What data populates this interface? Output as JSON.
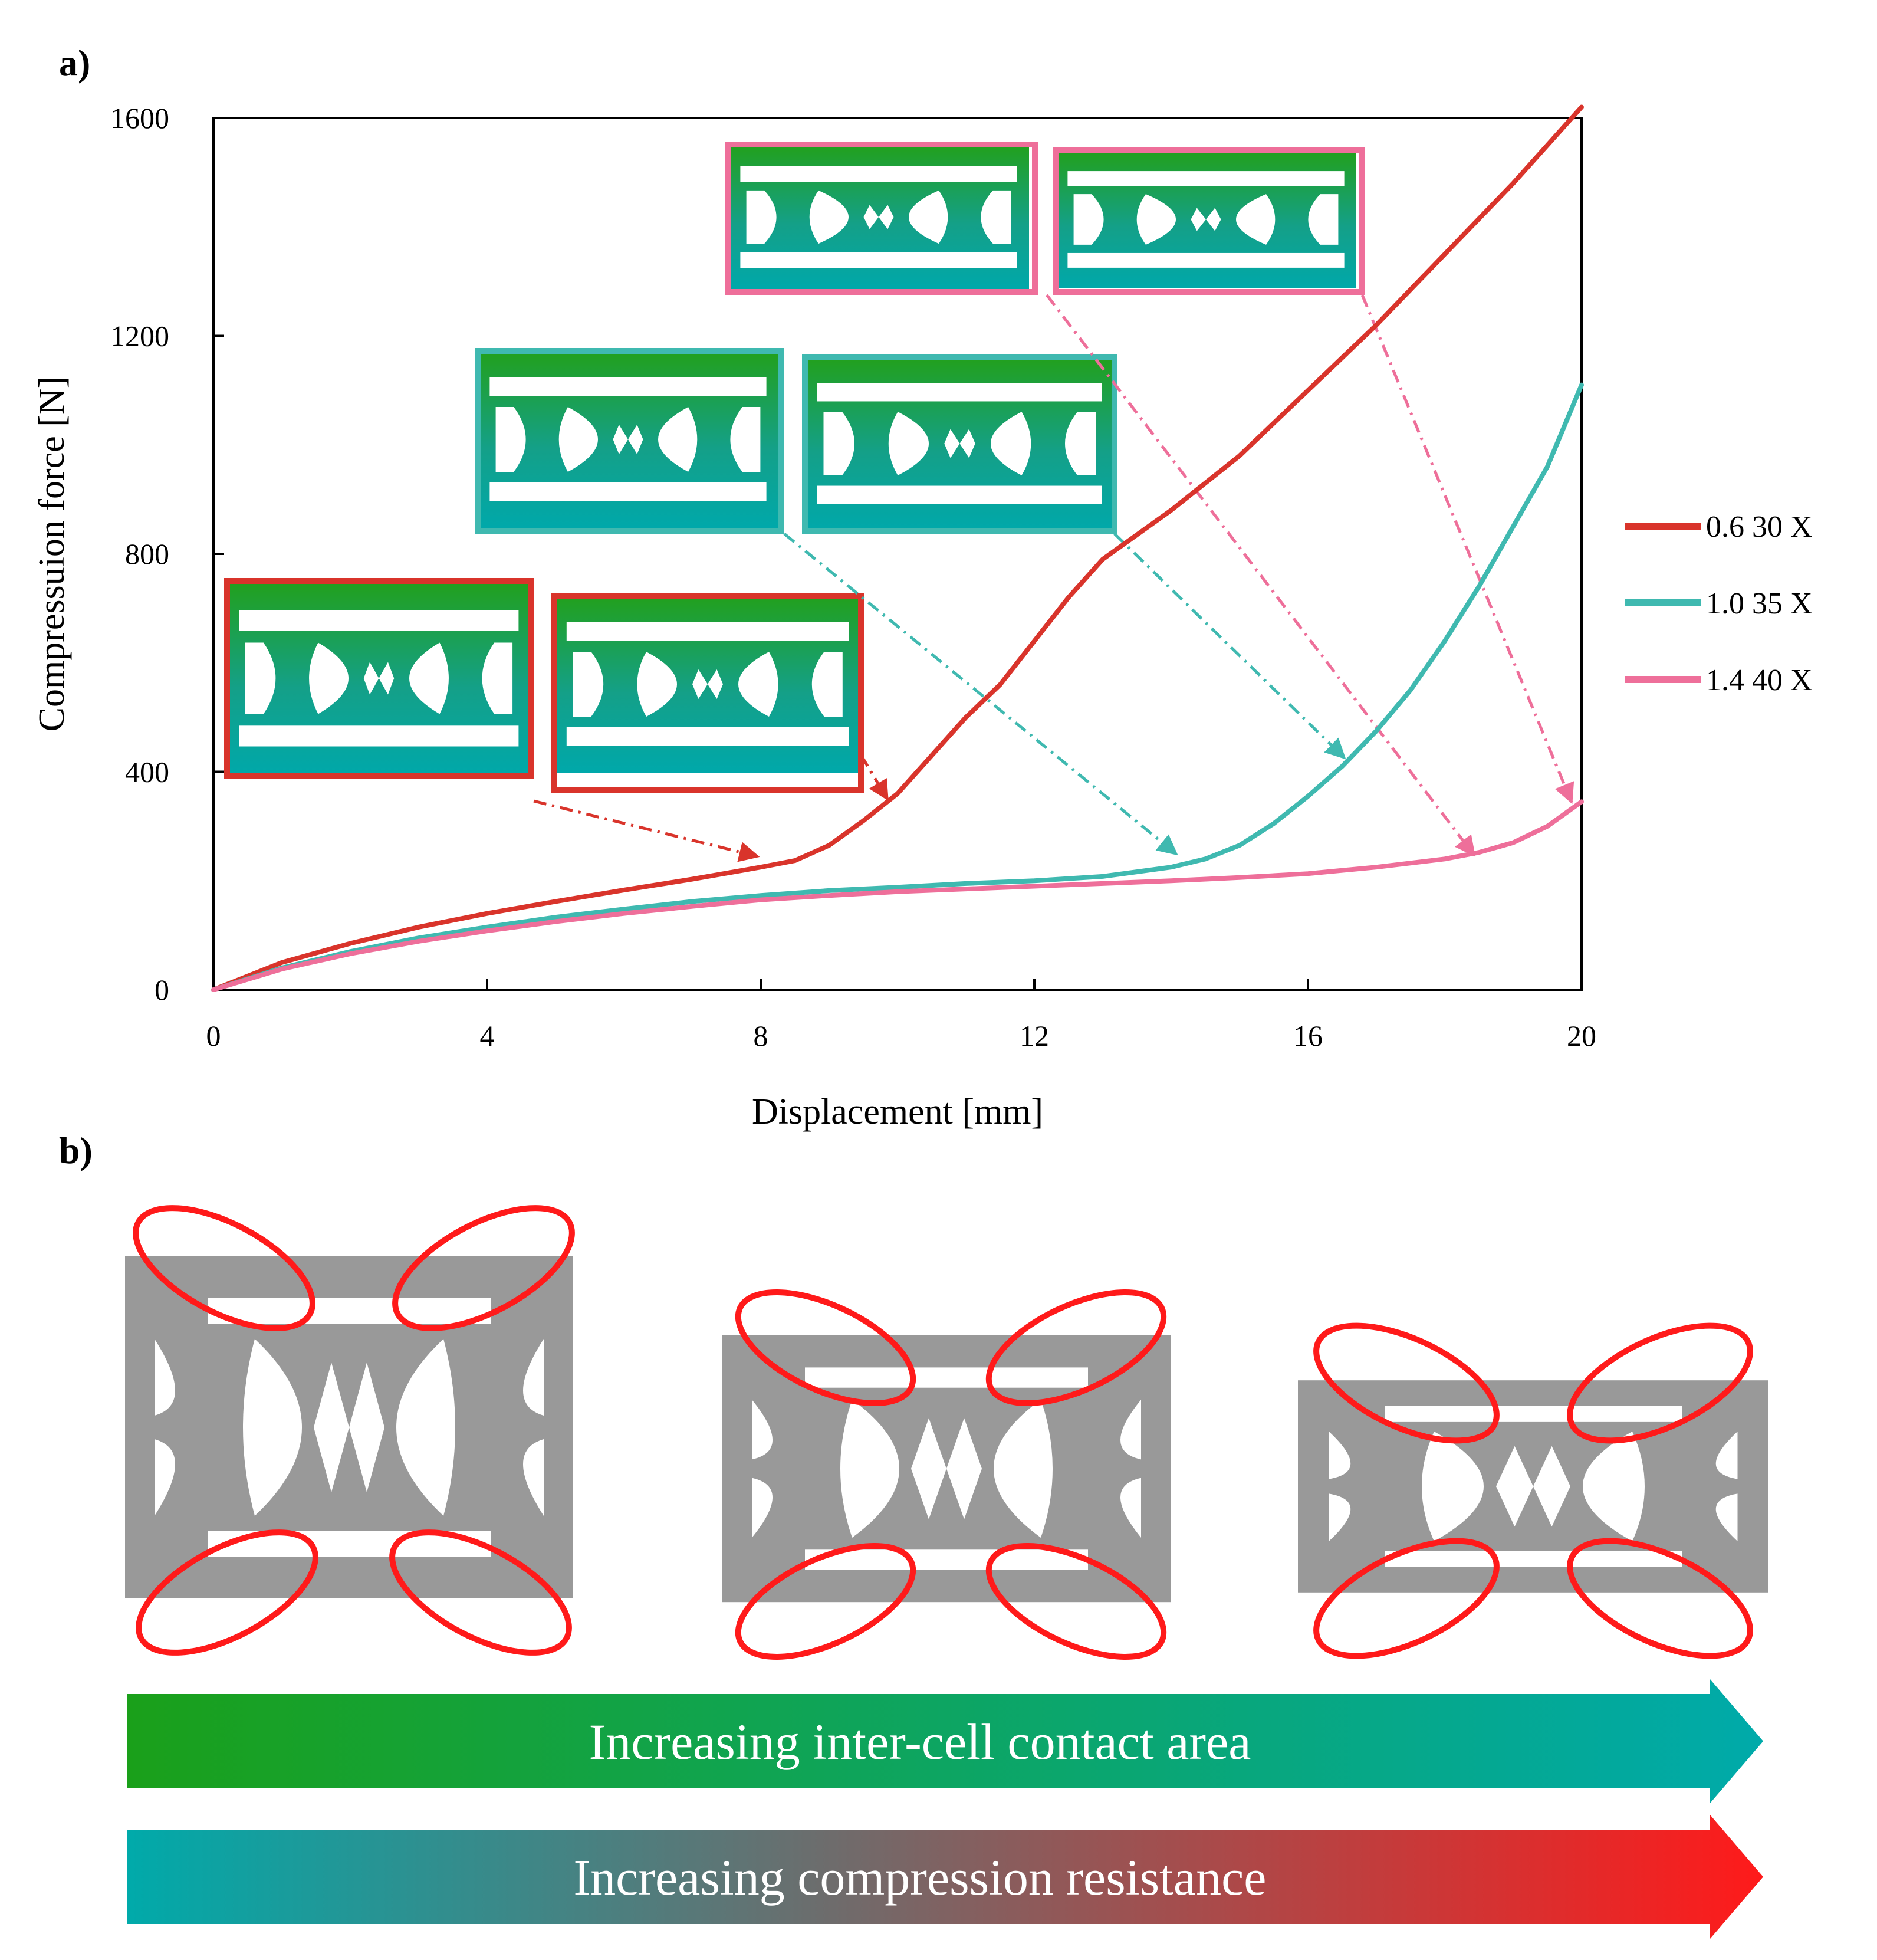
{
  "panels": {
    "a": "a)",
    "b": "b)"
  },
  "colors": {
    "red": "#d9342b",
    "teal": "#3fb9b0",
    "pink": "#ee6f9a",
    "green": "#1aa01a",
    "cyan": "#00aaaa",
    "bright_red": "#ff1a1a",
    "gray": "#999999"
  },
  "chart_data": {
    "type": "line",
    "title": "",
    "xlabel": "Displacement [mm]",
    "ylabel": "Compressuion force [N]",
    "xlim": [
      0,
      20
    ],
    "ylim": [
      0,
      1600
    ],
    "xticks": [
      0,
      4,
      8,
      12,
      16,
      20
    ],
    "yticks": [
      0,
      400,
      800,
      1200,
      1600
    ],
    "grid": false,
    "legend_position": "right",
    "series": [
      {
        "name": "0.6 30 X",
        "color": "#d9342b",
        "x": [
          0,
          1,
          2,
          3,
          4,
          5,
          6,
          7,
          8,
          8.5,
          9,
          9.5,
          10,
          10.5,
          11,
          11.5,
          12,
          12.5,
          13,
          14,
          15,
          16,
          17,
          18,
          19,
          20
        ],
        "y": [
          0,
          50,
          85,
          115,
          140,
          162,
          183,
          203,
          225,
          237,
          265,
          310,
          360,
          430,
          500,
          560,
          640,
          720,
          790,
          880,
          980,
          1100,
          1220,
          1350,
          1480,
          1620
        ]
      },
      {
        "name": "1.0 35 X",
        "color": "#3fb9b0",
        "x": [
          0,
          1,
          2,
          3,
          4,
          5,
          6,
          7,
          8,
          9,
          10,
          11,
          12,
          13,
          14,
          14.5,
          15,
          15.5,
          16,
          16.5,
          17,
          17.5,
          18,
          18.5,
          19,
          19.5,
          20
        ],
        "y": [
          0,
          40,
          70,
          95,
          115,
          133,
          148,
          162,
          173,
          182,
          188,
          195,
          200,
          208,
          225,
          240,
          265,
          305,
          355,
          410,
          475,
          550,
          640,
          740,
          850,
          960,
          1110
        ]
      },
      {
        "name": "1.4 40 X",
        "color": "#ee6f9a",
        "x": [
          0,
          1,
          2,
          3,
          4,
          5,
          6,
          7,
          8,
          9,
          10,
          11,
          12,
          13,
          14,
          15,
          16,
          17,
          18,
          18.5,
          19,
          19.5,
          20
        ],
        "y": [
          0,
          38,
          66,
          89,
          108,
          125,
          140,
          153,
          165,
          173,
          180,
          185,
          190,
          195,
          200,
          206,
          213,
          225,
          240,
          252,
          270,
          300,
          345
        ]
      }
    ]
  },
  "arrows": {
    "contact": "Increasing inter-cell contact area",
    "resistance": "Increasing compression resistance"
  }
}
